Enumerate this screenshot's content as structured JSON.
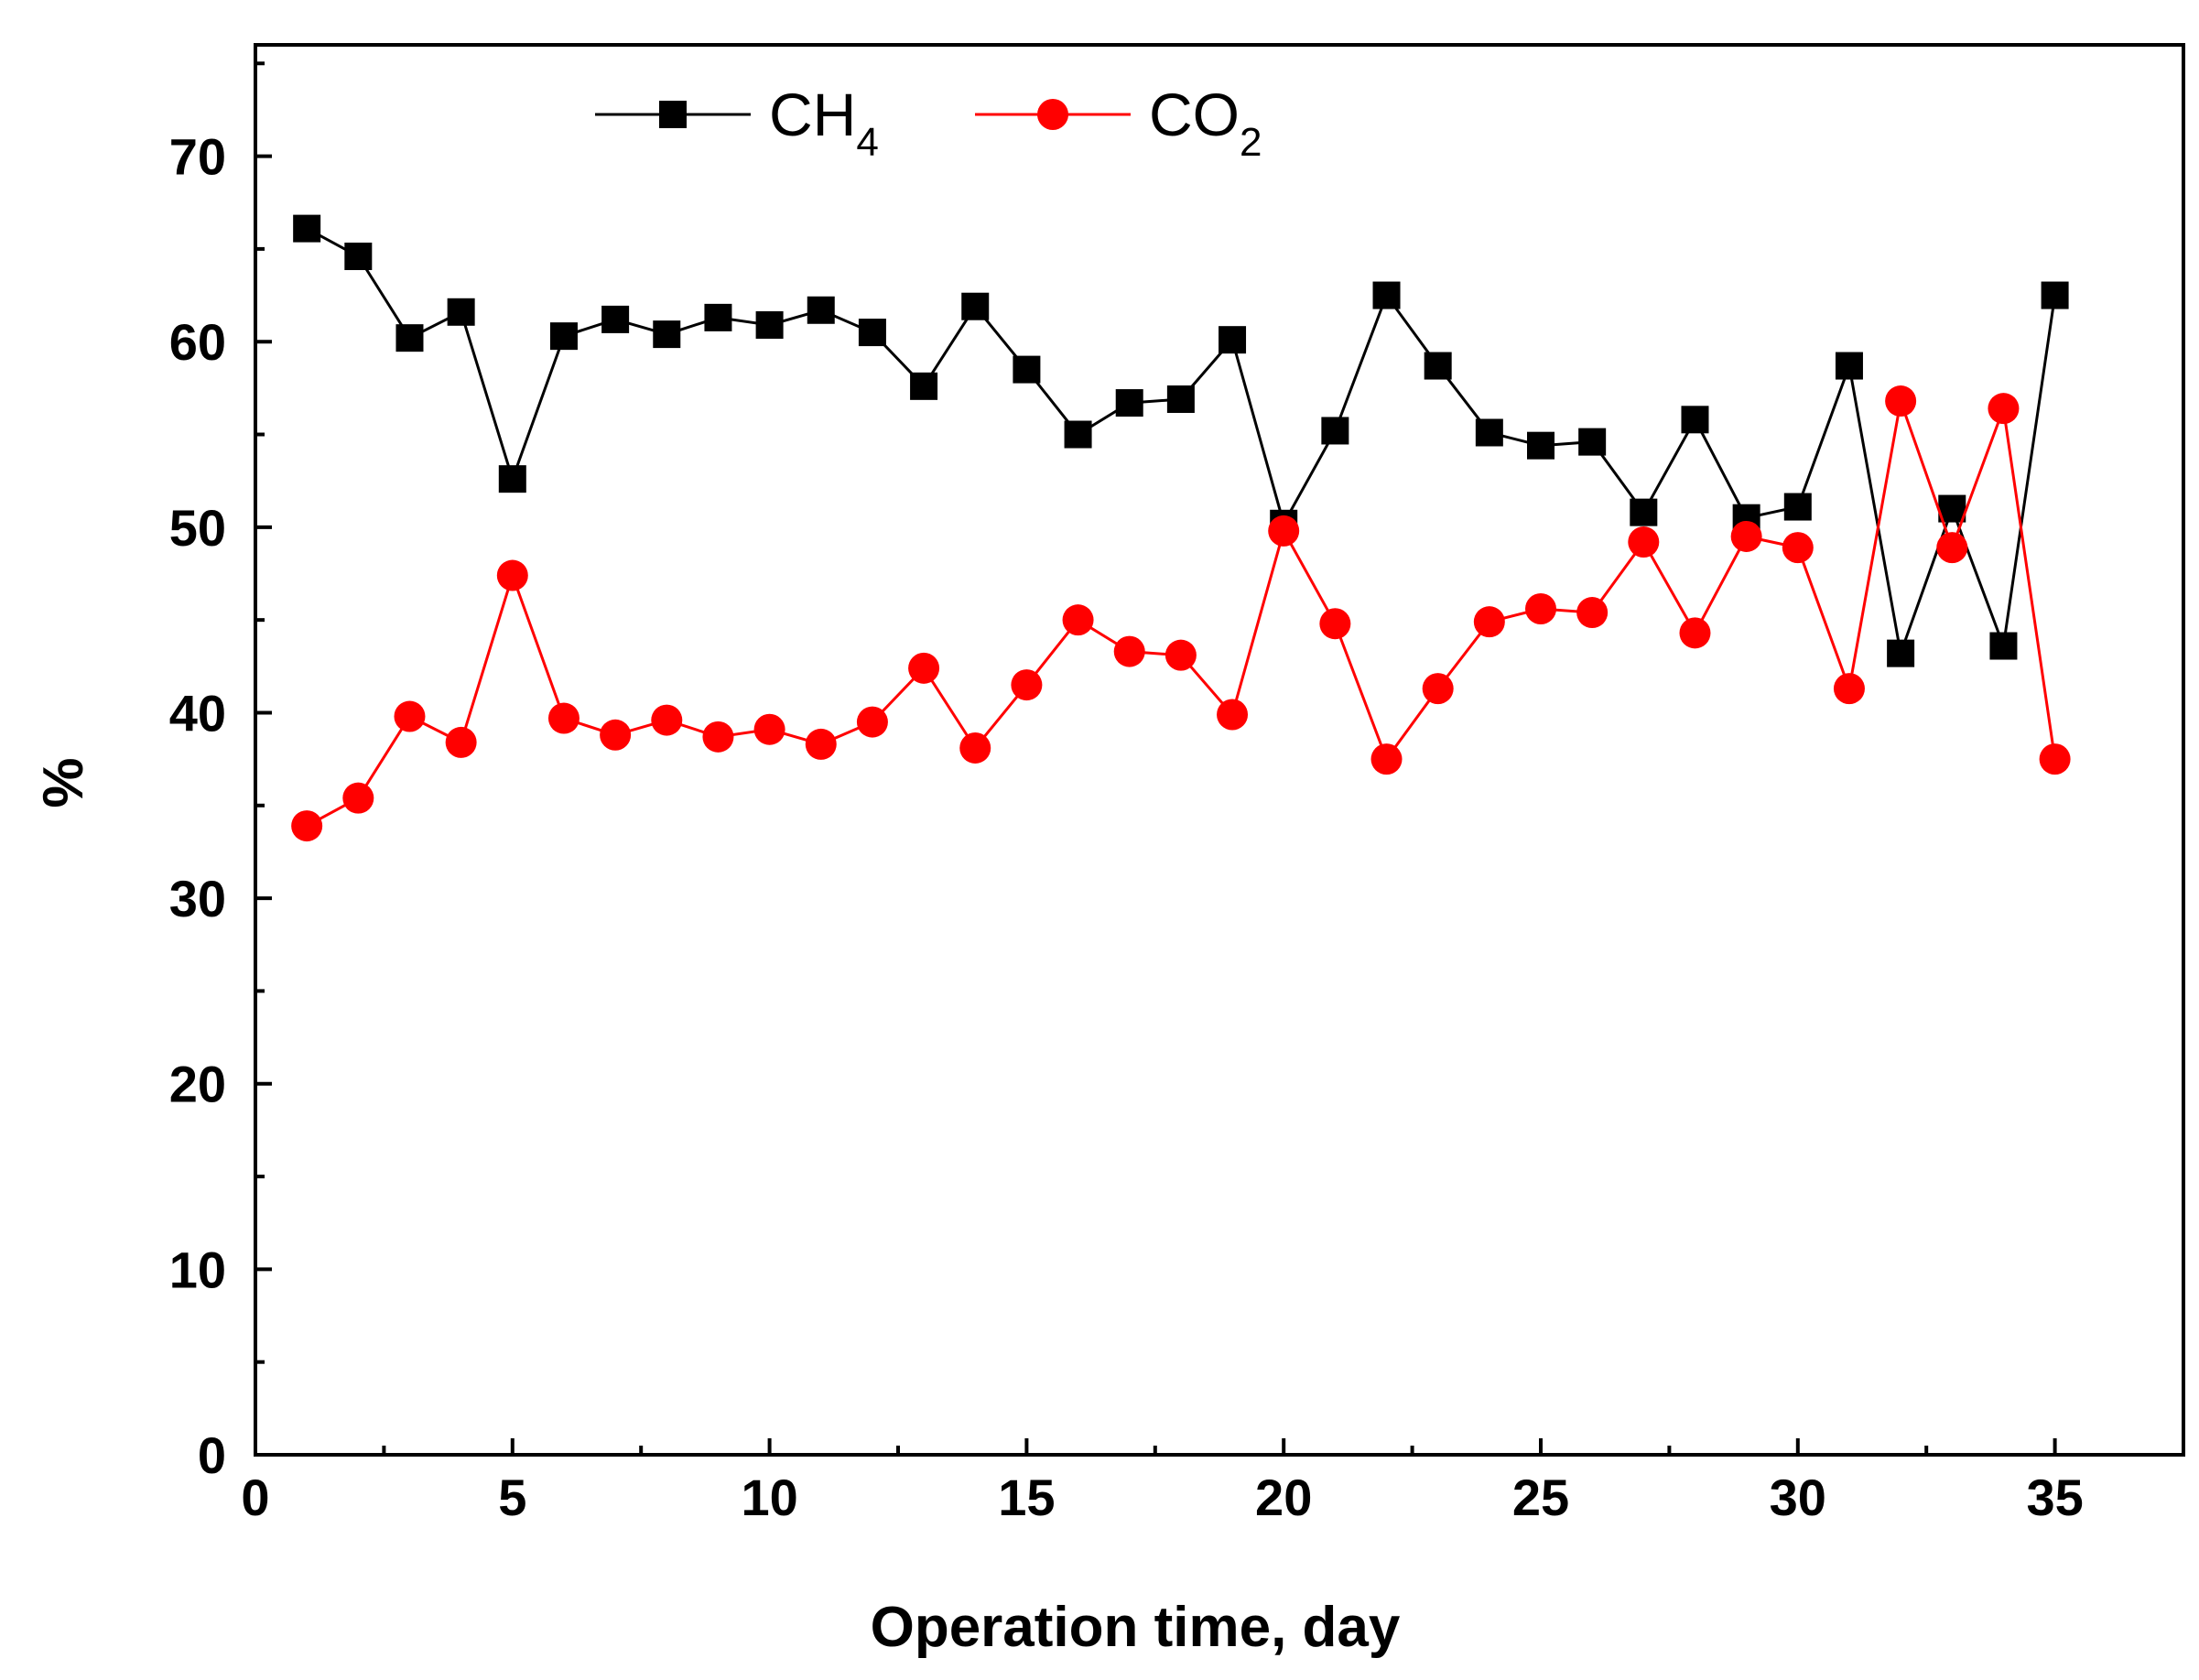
{
  "chart_data": {
    "type": "line",
    "title": "",
    "xlabel": "Operation time, day",
    "ylabel": "%",
    "xlim": [
      0,
      37.5
    ],
    "ylim": [
      0,
      76
    ],
    "x_ticks": [
      0,
      5,
      10,
      15,
      20,
      25,
      30,
      35
    ],
    "y_ticks": [
      0,
      10,
      20,
      30,
      40,
      50,
      60,
      70
    ],
    "grid": false,
    "legend_position": "top-left",
    "x": [
      1,
      2,
      3,
      4,
      5,
      6,
      7,
      8,
      9,
      10,
      11,
      12,
      13,
      14,
      15,
      16,
      17,
      18,
      19,
      20,
      21,
      22,
      23,
      24,
      25,
      26,
      27,
      28,
      29,
      30,
      31,
      32,
      33,
      34,
      35
    ],
    "series": [
      {
        "name": "CH4",
        "label_main": "CH",
        "label_sub": "4",
        "color": "#000000",
        "marker": "square",
        "values": [
          66.1,
          64.6,
          60.2,
          61.6,
          52.6,
          60.3,
          61.2,
          60.4,
          61.3,
          60.9,
          61.7,
          60.5,
          57.6,
          61.9,
          58.5,
          55.0,
          56.7,
          56.9,
          60.1,
          50.2,
          55.2,
          62.5,
          58.7,
          55.1,
          54.4,
          54.6,
          50.8,
          55.8,
          50.5,
          51.1,
          58.7,
          43.2,
          51.0,
          43.6,
          62.5
        ]
      },
      {
        "name": "CO2",
        "label_main": "CO",
        "label_sub": "2",
        "color": "#ff0000",
        "marker": "circle",
        "values": [
          33.9,
          35.4,
          39.8,
          38.4,
          47.4,
          39.7,
          38.8,
          39.6,
          38.7,
          39.1,
          38.3,
          39.5,
          42.4,
          38.1,
          41.5,
          45.0,
          43.3,
          43.1,
          39.9,
          49.8,
          44.8,
          37.5,
          41.3,
          44.9,
          45.6,
          45.4,
          49.2,
          44.3,
          49.5,
          48.9,
          41.3,
          56.8,
          48.9,
          56.4,
          37.5
        ]
      }
    ]
  }
}
